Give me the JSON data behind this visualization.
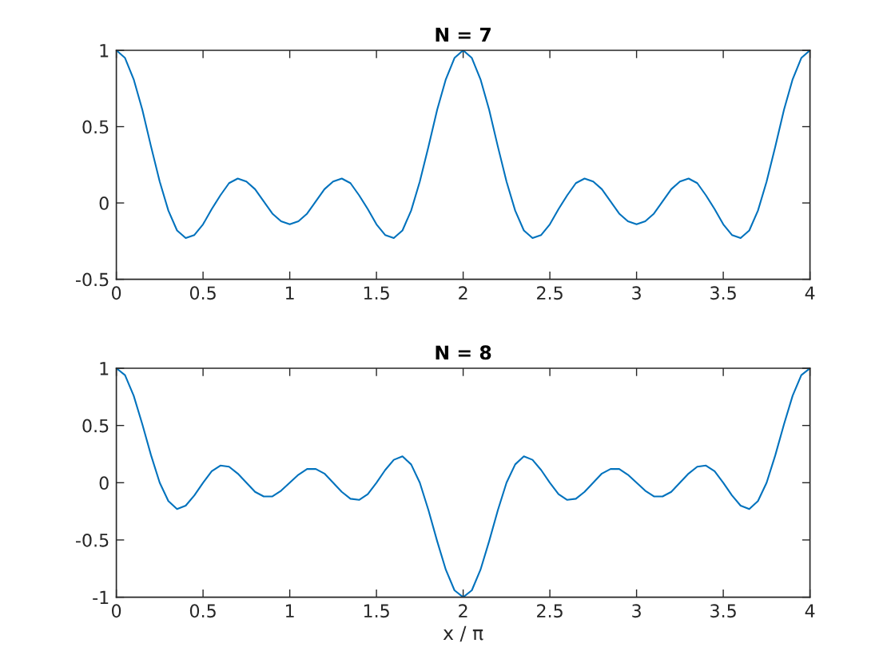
{
  "chart_data": [
    {
      "type": "line",
      "title": "N = 7",
      "color": "#0072bd",
      "x": [
        0,
        0.05,
        0.1,
        0.15,
        0.2,
        0.25,
        0.3,
        0.35,
        0.4,
        0.45,
        0.5,
        0.55,
        0.6,
        0.65,
        0.7,
        0.75,
        0.8,
        0.85,
        0.9,
        0.95,
        1,
        1.05,
        1.1,
        1.15,
        1.2,
        1.25,
        1.3,
        1.35,
        1.4,
        1.45,
        1.5,
        1.55,
        1.6,
        1.65,
        1.7,
        1.75,
        1.8,
        1.85,
        1.9,
        1.95,
        2,
        2.05,
        2.1,
        2.15,
        2.2,
        2.25,
        2.3,
        2.35,
        2.4,
        2.45,
        2.5,
        2.55,
        2.6,
        2.65,
        2.7,
        2.75,
        2.8,
        2.85,
        2.9,
        2.95,
        3,
        3.05,
        3.1,
        3.15,
        3.2,
        3.25,
        3.3,
        3.35,
        3.4,
        3.45,
        3.5,
        3.55,
        3.6,
        3.65,
        3.7,
        3.75,
        3.8,
        3.85,
        3.9,
        3.95,
        4
      ],
      "values": [
        1,
        0.95,
        0.81,
        0.61,
        0.37,
        0.14,
        -0.05,
        -0.18,
        -0.23,
        -0.21,
        -0.14,
        -0.04,
        0.05,
        0.13,
        0.16,
        0.14,
        0.09,
        0.01,
        -0.07,
        -0.12,
        -0.14,
        -0.12,
        -0.07,
        0.01,
        0.09,
        0.14,
        0.16,
        0.13,
        0.05,
        -0.04,
        -0.14,
        -0.21,
        -0.23,
        -0.18,
        -0.05,
        0.14,
        0.37,
        0.61,
        0.81,
        0.95,
        1,
        0.95,
        0.81,
        0.61,
        0.37,
        0.14,
        -0.05,
        -0.18,
        -0.23,
        -0.21,
        -0.14,
        -0.04,
        0.05,
        0.13,
        0.16,
        0.14,
        0.09,
        0.01,
        -0.07,
        -0.12,
        -0.14,
        -0.12,
        -0.07,
        0.01,
        0.09,
        0.14,
        0.16,
        0.13,
        0.05,
        -0.04,
        -0.14,
        -0.21,
        -0.23,
        -0.18,
        -0.05,
        0.14,
        0.37,
        0.61,
        0.81,
        0.95,
        1
      ],
      "xlim": [
        0,
        4
      ],
      "xticks": [
        0,
        0.5,
        1,
        1.5,
        2,
        2.5,
        3,
        3.5,
        4
      ],
      "ylim": [
        -0.5,
        1
      ],
      "yticks": [
        -0.5,
        0,
        0.5,
        1
      ]
    },
    {
      "type": "line",
      "title": "N = 8",
      "xlabel": "x / π",
      "color": "#0072bd",
      "x": [
        0,
        0.05,
        0.1,
        0.15,
        0.2,
        0.25,
        0.3,
        0.35,
        0.4,
        0.45,
        0.5,
        0.55,
        0.6,
        0.65,
        0.7,
        0.75,
        0.8,
        0.85,
        0.9,
        0.95,
        1,
        1.05,
        1.1,
        1.15,
        1.2,
        1.25,
        1.3,
        1.35,
        1.4,
        1.45,
        1.5,
        1.55,
        1.6,
        1.65,
        1.7,
        1.75,
        1.8,
        1.85,
        1.9,
        1.95,
        2,
        2.05,
        2.1,
        2.15,
        2.2,
        2.25,
        2.3,
        2.35,
        2.4,
        2.45,
        2.5,
        2.55,
        2.6,
        2.65,
        2.7,
        2.75,
        2.8,
        2.85,
        2.9,
        2.95,
        3,
        3.05,
        3.1,
        3.15,
        3.2,
        3.25,
        3.3,
        3.35,
        3.4,
        3.45,
        3.5,
        3.55,
        3.6,
        3.65,
        3.7,
        3.75,
        3.8,
        3.85,
        3.9,
        3.95,
        4
      ],
      "values": [
        1,
        0.94,
        0.76,
        0.51,
        0.24,
        0,
        -0.16,
        -0.23,
        -0.2,
        -0.11,
        0,
        0.1,
        0.15,
        0.14,
        0.08,
        0,
        -0.08,
        -0.12,
        -0.12,
        -0.07,
        0,
        0.07,
        0.12,
        0.12,
        0.08,
        0,
        -0.08,
        -0.14,
        -0.15,
        -0.1,
        0,
        0.11,
        0.2,
        0.23,
        0.16,
        0,
        -0.24,
        -0.51,
        -0.76,
        -0.94,
        -1,
        -0.94,
        -0.76,
        -0.51,
        -0.24,
        0,
        0.16,
        0.23,
        0.2,
        0.11,
        0,
        -0.1,
        -0.15,
        -0.14,
        -0.08,
        0,
        0.08,
        0.12,
        0.12,
        0.07,
        0,
        -0.07,
        -0.12,
        -0.12,
        -0.08,
        0,
        0.08,
        0.14,
        0.15,
        0.1,
        0,
        -0.11,
        -0.2,
        -0.23,
        -0.16,
        0,
        0.24,
        0.51,
        0.76,
        0.94,
        1
      ],
      "xlim": [
        0,
        4
      ],
      "xticks": [
        0,
        0.5,
        1,
        1.5,
        2,
        2.5,
        3,
        3.5,
        4
      ],
      "ylim": [
        -1,
        1
      ],
      "yticks": [
        -1,
        -0.5,
        0,
        0.5,
        1
      ]
    }
  ]
}
